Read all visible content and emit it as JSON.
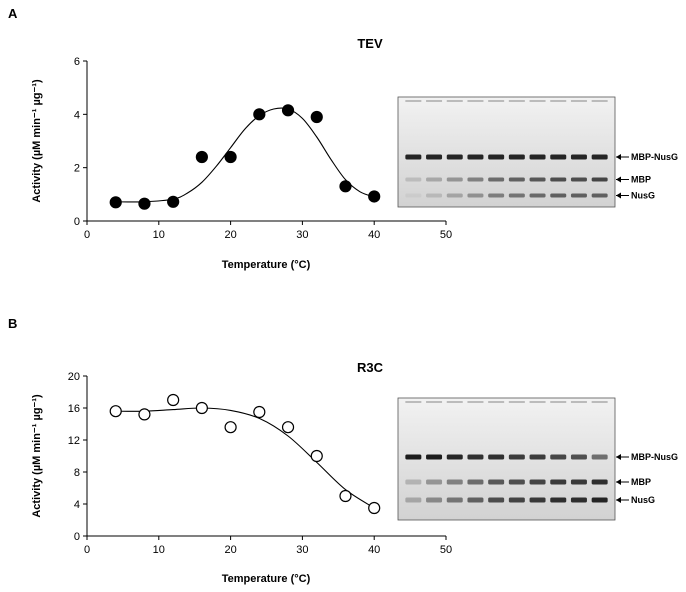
{
  "panels": [
    {
      "letter": "A",
      "gel_labels": [
        "MBP-NusG",
        "MBP",
        "NusG"
      ],
      "gel_lanes": 10
    },
    {
      "letter": "B",
      "gel_labels": [
        "MBP-NusG",
        "MBP",
        "NusG"
      ],
      "gel_lanes": 10
    }
  ],
  "chart_data": [
    {
      "type": "scatter",
      "title": "TEV",
      "xlabel": "Temperature (°C)",
      "ylabel": "Activity (µM min⁻¹ µg⁻¹)",
      "xlim": [
        0,
        50
      ],
      "ylim": [
        0,
        6
      ],
      "xticks": [
        0,
        10,
        20,
        30,
        40,
        50
      ],
      "yticks": [
        0,
        2,
        4,
        6
      ],
      "marker": "filled-circle",
      "fit_line": true,
      "x": [
        4,
        8,
        12,
        16,
        20,
        24,
        28,
        32,
        36,
        40
      ],
      "y": [
        0.7,
        0.65,
        0.72,
        2.4,
        2.4,
        4.0,
        4.15,
        3.9,
        1.3,
        0.92
      ],
      "fit_x": [
        4,
        8,
        12,
        14,
        16,
        18,
        20,
        22,
        24,
        26,
        28,
        30,
        32,
        34,
        36,
        38,
        40
      ],
      "fit_y": [
        0.72,
        0.72,
        0.82,
        1.05,
        1.45,
        2.05,
        2.75,
        3.45,
        3.95,
        4.2,
        4.2,
        3.85,
        3.15,
        2.3,
        1.55,
        1.1,
        0.9
      ]
    },
    {
      "type": "scatter",
      "title": "R3C",
      "xlabel": "Temperature (°C)",
      "ylabel": "Activity (µM min⁻¹ µg⁻¹)",
      "xlim": [
        0,
        50
      ],
      "ylim": [
        0,
        20
      ],
      "xticks": [
        0,
        10,
        20,
        30,
        40,
        50
      ],
      "yticks": [
        0,
        4,
        8,
        12,
        16,
        20
      ],
      "marker": "open-circle",
      "fit_line": true,
      "x": [
        4,
        8,
        12,
        16,
        20,
        24,
        28,
        32,
        36,
        40
      ],
      "y": [
        15.6,
        15.2,
        17.0,
        16.0,
        13.6,
        15.5,
        13.6,
        10.0,
        5.0,
        3.5
      ],
      "fit_x": [
        4,
        8,
        12,
        16,
        20,
        24,
        28,
        32,
        36,
        40
      ],
      "fit_y": [
        15.6,
        15.6,
        15.8,
        16.0,
        15.7,
        14.7,
        12.5,
        9.2,
        5.8,
        3.5
      ]
    }
  ]
}
